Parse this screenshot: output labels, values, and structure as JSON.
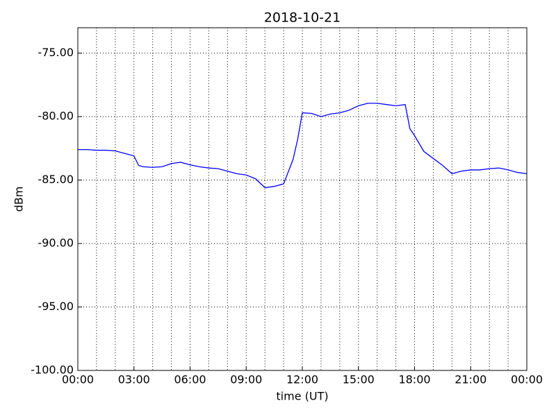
{
  "chart_data": {
    "type": "line",
    "title": "2018-10-21",
    "xlabel": "time (UT)",
    "ylabel": "dBm",
    "x": [
      0,
      0.5,
      1,
      1.5,
      2,
      2.5,
      3,
      3.25,
      3.5,
      4,
      4.5,
      5,
      5.5,
      6,
      6.5,
      7,
      7.5,
      8,
      8.5,
      9,
      9.5,
      10,
      10.5,
      11,
      11.5,
      11.75,
      12,
      12.5,
      13,
      13.5,
      14,
      14.5,
      15,
      15.5,
      16,
      16.5,
      17,
      17.5,
      17.75,
      18,
      18.5,
      19,
      19.5,
      20,
      20.5,
      21,
      21.5,
      22,
      22.5,
      23,
      23.5,
      24
    ],
    "series": [
      {
        "name": "dBm",
        "color": "#0000ff",
        "values": [
          -82.6,
          -82.6,
          -82.65,
          -82.65,
          -82.7,
          -82.9,
          -83.1,
          -83.85,
          -83.95,
          -84.0,
          -83.95,
          -83.7,
          -83.6,
          -83.8,
          -83.95,
          -84.05,
          -84.1,
          -84.3,
          -84.5,
          -84.6,
          -84.9,
          -85.6,
          -85.5,
          -85.3,
          -83.4,
          -81.8,
          -79.7,
          -79.75,
          -80.0,
          -79.8,
          -79.7,
          -79.5,
          -79.15,
          -78.95,
          -78.95,
          -79.05,
          -79.15,
          -79.05,
          -80.95,
          -81.5,
          -82.75,
          -83.3,
          -83.85,
          -84.5,
          -84.3,
          -84.2,
          -84.2,
          -84.1,
          -84.05,
          -84.2,
          -84.4,
          -84.5
        ]
      }
    ],
    "xlim": [
      0,
      24
    ],
    "xticks": [
      {
        "value": 0,
        "label": "00:00"
      },
      {
        "value": 3,
        "label": "03:00"
      },
      {
        "value": 6,
        "label": "06:00"
      },
      {
        "value": 9,
        "label": "09:00"
      },
      {
        "value": 12,
        "label": "12:00"
      },
      {
        "value": 15,
        "label": "15:00"
      },
      {
        "value": 18,
        "label": "18:00"
      },
      {
        "value": 21,
        "label": "21:00"
      },
      {
        "value": 24,
        "label": "00:00"
      }
    ],
    "xminorticks": [
      1,
      2,
      4,
      5,
      7,
      8,
      10,
      11,
      13,
      14,
      16,
      17,
      19,
      20,
      22,
      23
    ],
    "ylim": [
      -100,
      -73
    ],
    "yticks": [
      {
        "value": -100,
        "label": "-100.00"
      },
      {
        "value": -95,
        "label": "-95.00"
      },
      {
        "value": -90,
        "label": "-90.00"
      },
      {
        "value": -85,
        "label": "-85.00"
      },
      {
        "value": -80,
        "label": "-80.00"
      },
      {
        "value": -75,
        "label": "-75.00"
      }
    ],
    "grid": true
  }
}
